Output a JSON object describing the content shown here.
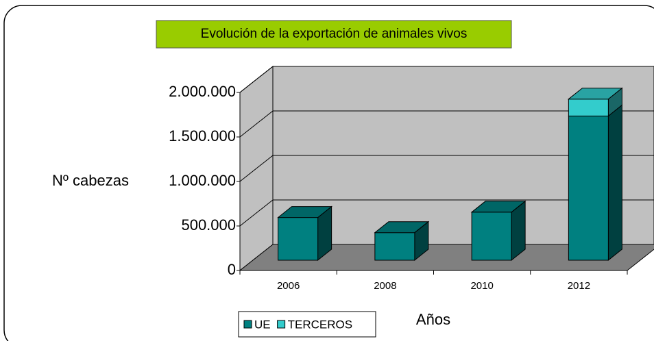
{
  "chart_data": {
    "type": "bar3d_stacked",
    "title": "Evolución de la exportación de animales vivos",
    "y_label": "Nº cabezas",
    "x_label": "Años",
    "categories": [
      "2006",
      "2008",
      "2010",
      "2012"
    ],
    "series": [
      {
        "name": "UE",
        "color": "#008080",
        "values": [
          480000,
          310000,
          540000,
          1620000
        ]
      },
      {
        "name": "TERCEROS",
        "color": "#33cccc",
        "values": [
          0,
          0,
          0,
          190000
        ]
      }
    ],
    "ylim": [
      0,
      2000000
    ],
    "yticks": [
      0,
      {
        "value": 500000,
        "label": "500.000"
      },
      {
        "value": 1000000,
        "label": "1.000.000"
      },
      {
        "value": 1500000,
        "label": "1.500.000"
      },
      {
        "value": 2000000,
        "label": "2.000.000"
      }
    ],
    "grid": true
  }
}
